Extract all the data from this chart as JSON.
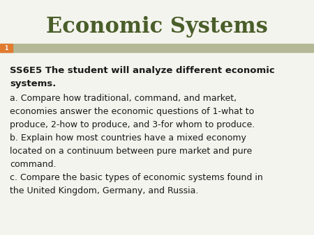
{
  "title": "Economic Systems",
  "title_color": "#4a5e2a",
  "title_fontsize": 22,
  "title_font": "DejaVu Serif",
  "title_style": "normal",
  "title_weight": "bold",
  "bg_color": "#f4f4ee",
  "header_bar_color": "#b5b896",
  "slide_number": "1",
  "slide_number_bg": "#e07b30",
  "bold_line1": "SS6E5 The student will analyze different economic",
  "bold_line2": "systems.",
  "body_lines": [
    "a. Compare how traditional, command, and market,",
    "economies answer the economic questions of 1-what to",
    "produce, 2-how to produce, and 3-for whom to produce.",
    "b. Explain how most countries have a mixed economy",
    "located on a continuum between pure market and pure",
    "command.",
    "c. Compare the basic types of economic systems found in",
    "the United Kingdom, Germany, and Russia."
  ],
  "body_fontsize": 9.0,
  "bold_fontsize": 9.5,
  "text_color": "#1a1a1a"
}
